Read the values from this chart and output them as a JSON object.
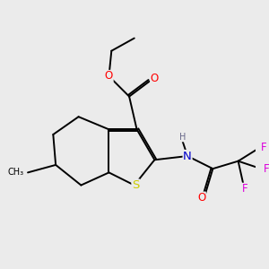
{
  "bg_color": "#ebebeb",
  "atom_colors": {
    "O": "#ff0000",
    "N": "#0000cc",
    "S": "#cccc00",
    "F": "#dd00dd",
    "H": "#666688",
    "C": "#000000"
  },
  "font_size_atom": 8.5,
  "figsize": [
    3.0,
    3.0
  ],
  "dpi": 100,
  "lw": 1.4
}
